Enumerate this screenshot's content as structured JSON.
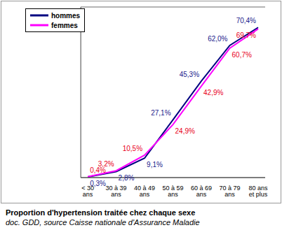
{
  "chart_data": {
    "type": "line",
    "title": "Proportion d'hypertension traitée chez chaque sexe",
    "subtitle": "doc. GDD, source Caisse nationale d'Assurance Maladie",
    "categories": [
      "< 30 ans",
      "30 à 39 ans",
      "40 à 49 ans",
      "50 à 59 ans",
      "60 à 69 ans",
      "70 à 79 ans",
      "80 ans et plus"
    ],
    "series": [
      {
        "name": "hommes",
        "color": "#000080",
        "values": [
          0.3,
          2.8,
          9.1,
          27.1,
          45.3,
          62.0,
          70.4
        ],
        "value_labels": [
          "0,3%",
          "2,8%",
          "9,1%",
          "27,1%",
          "45,3%",
          "62,0%",
          "70,4%"
        ]
      },
      {
        "name": "femmes",
        "color": "#ff00ff",
        "values": [
          0.4,
          3.2,
          10.5,
          24.9,
          42.9,
          60.7,
          69.7
        ],
        "value_labels": [
          "0,4%",
          "3,2%",
          "10,5%",
          "24,9%",
          "42,9%",
          "60,7%",
          "69,7%"
        ]
      }
    ],
    "ylim": [
      0,
      80
    ],
    "yticks": [
      0,
      10,
      20,
      30,
      40,
      50,
      60,
      70,
      80
    ],
    "grid": true,
    "legend": "top-left",
    "data_labels": true,
    "tick_labels": "x"
  }
}
